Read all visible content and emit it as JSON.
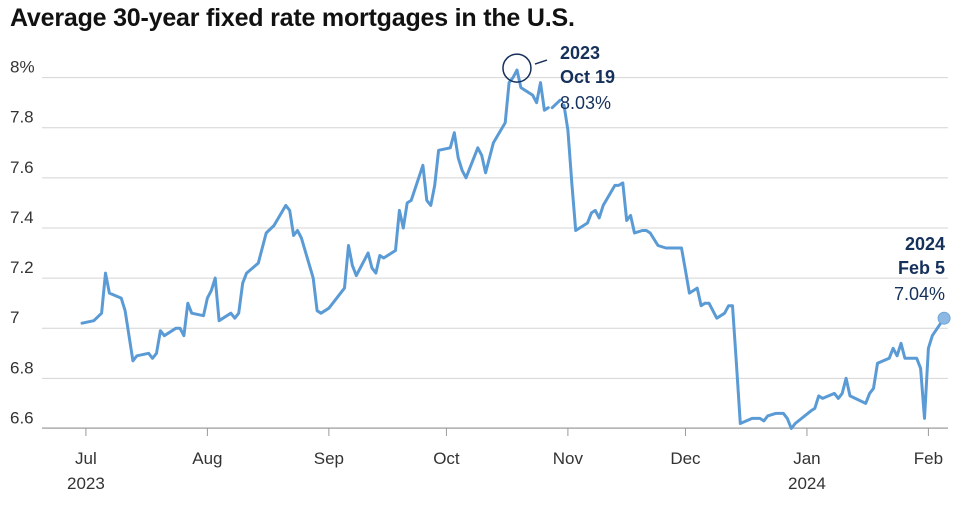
{
  "chart_data": {
    "type": "line",
    "title": "Average 30-year fixed rate mortgages in the U.S.",
    "xlabel": "",
    "ylabel": "",
    "ylim": [
      6.55,
      8.15
    ],
    "x_range": [
      "2023-06-30",
      "2024-02-06"
    ],
    "y_ticks": [
      {
        "value": 6.6,
        "label": "6.6"
      },
      {
        "value": 6.8,
        "label": "6.8"
      },
      {
        "value": 7.0,
        "label": "7"
      },
      {
        "value": 7.2,
        "label": "7.2"
      },
      {
        "value": 7.4,
        "label": "7.4"
      },
      {
        "value": 7.6,
        "label": "7.6"
      },
      {
        "value": 7.8,
        "label": "7.8"
      },
      {
        "value": 8.0,
        "label": "8%"
      }
    ],
    "x_ticks": [
      {
        "date": "2023-07-01",
        "label": "Jul",
        "sublabel": "2023"
      },
      {
        "date": "2023-08-01",
        "label": "Aug",
        "sublabel": ""
      },
      {
        "date": "2023-09-01",
        "label": "Sep",
        "sublabel": ""
      },
      {
        "date": "2023-10-01",
        "label": "Oct",
        "sublabel": ""
      },
      {
        "date": "2023-11-01",
        "label": "Nov",
        "sublabel": ""
      },
      {
        "date": "2023-12-01",
        "label": "Dec",
        "sublabel": ""
      },
      {
        "date": "2024-01-01",
        "label": "Jan",
        "sublabel": "2024"
      },
      {
        "date": "2024-02-01",
        "label": "Feb",
        "sublabel": ""
      }
    ],
    "grid": true,
    "line_color": "#5b9bd5",
    "annotation_color": "#15305a",
    "annotations": [
      {
        "date": "2023-10-19",
        "value": 8.03,
        "year": "2023",
        "day": "Oct 19",
        "value_label": "8.03%",
        "marker": "circle"
      },
      {
        "date": "2024-02-05",
        "value": 7.04,
        "year": "2024",
        "day": "Feb 5",
        "value_label": "7.04%",
        "marker": "dot"
      }
    ],
    "series": [
      {
        "segments": [
          [
            [
              "2023-06-30",
              7.02
            ],
            [
              "2023-07-03",
              7.03
            ],
            [
              "2023-07-05",
              7.06
            ],
            [
              "2023-07-06",
              7.22
            ],
            [
              "2023-07-07",
              7.14
            ],
            [
              "2023-07-10",
              7.12
            ],
            [
              "2023-07-11",
              7.07
            ],
            [
              "2023-07-12",
              6.97
            ],
            [
              "2023-07-13",
              6.87
            ],
            [
              "2023-07-14",
              6.89
            ],
            [
              "2023-07-17",
              6.9
            ],
            [
              "2023-07-18",
              6.88
            ],
            [
              "2023-07-19",
              6.9
            ],
            [
              "2023-07-20",
              6.99
            ],
            [
              "2023-07-21",
              6.97
            ],
            [
              "2023-07-24",
              7.0
            ],
            [
              "2023-07-25",
              7.0
            ],
            [
              "2023-07-26",
              6.97
            ],
            [
              "2023-07-27",
              7.1
            ],
            [
              "2023-07-28",
              7.06
            ],
            [
              "2023-07-31",
              7.05
            ],
            [
              "2023-08-01",
              7.12
            ],
            [
              "2023-08-02",
              7.15
            ],
            [
              "2023-08-03",
              7.2
            ],
            [
              "2023-08-04",
              7.03
            ],
            [
              "2023-08-07",
              7.06
            ],
            [
              "2023-08-08",
              7.04
            ],
            [
              "2023-08-09",
              7.06
            ],
            [
              "2023-08-10",
              7.18
            ],
            [
              "2023-08-11",
              7.22
            ],
            [
              "2023-08-14",
              7.26
            ],
            [
              "2023-08-16",
              7.38
            ],
            [
              "2023-08-18",
              7.41
            ],
            [
              "2023-08-21",
              7.49
            ],
            [
              "2023-08-22",
              7.47
            ],
            [
              "2023-08-23",
              7.37
            ],
            [
              "2023-08-24",
              7.39
            ],
            [
              "2023-08-25",
              7.36
            ],
            [
              "2023-08-28",
              7.2
            ],
            [
              "2023-08-29",
              7.07
            ],
            [
              "2023-08-30",
              7.06
            ],
            [
              "2023-09-01",
              7.08
            ],
            [
              "2023-09-05",
              7.16
            ],
            [
              "2023-09-06",
              7.33
            ],
            [
              "2023-09-07",
              7.25
            ],
            [
              "2023-09-08",
              7.21
            ],
            [
              "2023-09-11",
              7.3
            ],
            [
              "2023-09-12",
              7.24
            ],
            [
              "2023-09-13",
              7.22
            ],
            [
              "2023-09-14",
              7.29
            ],
            [
              "2023-09-15",
              7.28
            ],
            [
              "2023-09-18",
              7.31
            ],
            [
              "2023-09-19",
              7.47
            ],
            [
              "2023-09-20",
              7.4
            ],
            [
              "2023-09-21",
              7.5
            ],
            [
              "2023-09-22",
              7.51
            ],
            [
              "2023-09-25",
              7.65
            ],
            [
              "2023-09-26",
              7.51
            ],
            [
              "2023-09-27",
              7.49
            ],
            [
              "2023-09-28",
              7.57
            ],
            [
              "2023-09-29",
              7.71
            ],
            [
              "2023-10-02",
              7.72
            ],
            [
              "2023-10-03",
              7.78
            ],
            [
              "2023-10-04",
              7.68
            ],
            [
              "2023-10-05",
              7.63
            ],
            [
              "2023-10-06",
              7.6
            ],
            [
              "2023-10-09",
              7.72
            ],
            [
              "2023-10-10",
              7.69
            ],
            [
              "2023-10-11",
              7.62
            ],
            [
              "2023-10-12",
              7.68
            ],
            [
              "2023-10-13",
              7.74
            ],
            [
              "2023-10-16",
              7.82
            ],
            [
              "2023-10-17",
              7.98
            ],
            [
              "2023-10-18",
              8.0
            ],
            [
              "2023-10-19",
              8.03
            ],
            [
              "2023-10-20",
              7.96
            ],
            [
              "2023-10-23",
              7.93
            ],
            [
              "2023-10-24",
              7.9
            ],
            [
              "2023-10-25",
              7.98
            ],
            [
              "2023-10-26",
              7.87
            ],
            [
              "2023-10-27",
              7.88
            ]
          ],
          [
            [
              "2023-10-28",
              7.88
            ],
            [
              "2023-10-30",
              7.91
            ]
          ],
          [
            [
              "2023-10-31",
              7.89
            ],
            [
              "2023-11-01",
              7.79
            ],
            [
              "2023-11-02",
              7.58
            ],
            [
              "2023-11-03",
              7.39
            ],
            [
              "2023-11-06",
              7.42
            ],
            [
              "2023-11-07",
              7.46
            ],
            [
              "2023-11-08",
              7.47
            ],
            [
              "2023-11-09",
              7.44
            ],
            [
              "2023-11-10",
              7.49
            ],
            [
              "2023-11-13",
              7.57
            ],
            [
              "2023-11-14",
              7.57
            ],
            [
              "2023-11-15",
              7.58
            ],
            [
              "2023-11-16",
              7.43
            ],
            [
              "2023-11-17",
              7.45
            ],
            [
              "2023-11-18",
              7.38
            ],
            [
              "2023-11-20",
              7.39
            ],
            [
              "2023-11-21",
              7.39
            ],
            [
              "2023-11-22",
              7.38
            ],
            [
              "2023-11-24",
              7.33
            ],
            [
              "2023-11-26",
              7.32
            ],
            [
              "2023-11-28",
              7.32
            ],
            [
              "2023-11-30",
              7.32
            ],
            [
              "2023-12-01",
              7.23
            ],
            [
              "2023-12-02",
              7.14
            ],
            [
              "2023-12-04",
              7.16
            ],
            [
              "2023-12-05",
              7.09
            ],
            [
              "2023-12-06",
              7.1
            ],
            [
              "2023-12-07",
              7.1
            ],
            [
              "2023-12-08",
              7.07
            ],
            [
              "2023-12-09",
              7.04
            ],
            [
              "2023-12-11",
              7.06
            ],
            [
              "2023-12-12",
              7.09
            ],
            [
              "2023-12-13",
              7.09
            ],
            [
              "2023-12-14",
              6.86
            ],
            [
              "2023-12-15",
              6.62
            ],
            [
              "2023-12-18",
              6.64
            ],
            [
              "2023-12-20",
              6.64
            ],
            [
              "2023-12-21",
              6.63
            ],
            [
              "2023-12-22",
              6.65
            ],
            [
              "2023-12-24",
              6.66
            ],
            [
              "2023-12-26",
              6.66
            ],
            [
              "2023-12-27",
              6.64
            ],
            [
              "2023-12-28",
              6.6
            ],
            [
              "2023-12-29",
              6.62
            ],
            [
              "2024-01-02",
              6.67
            ],
            [
              "2024-01-03",
              6.68
            ],
            [
              "2024-01-04",
              6.73
            ],
            [
              "2024-01-05",
              6.72
            ],
            [
              "2024-01-08",
              6.74
            ],
            [
              "2024-01-09",
              6.72
            ],
            [
              "2024-01-10",
              6.74
            ],
            [
              "2024-01-11",
              6.8
            ],
            [
              "2024-01-12",
              6.73
            ],
            [
              "2024-01-16",
              6.7
            ],
            [
              "2024-01-17",
              6.74
            ],
            [
              "2024-01-18",
              6.76
            ],
            [
              "2024-01-19",
              6.86
            ],
            [
              "2024-01-22",
              6.88
            ],
            [
              "2024-01-23",
              6.92
            ],
            [
              "2024-01-24",
              6.89
            ],
            [
              "2024-01-25",
              6.94
            ],
            [
              "2024-01-26",
              6.88
            ],
            [
              "2024-01-29",
              6.88
            ],
            [
              "2024-01-30",
              6.84
            ],
            [
              "2024-01-31",
              6.64
            ],
            [
              "2024-02-01",
              6.92
            ],
            [
              "2024-02-02",
              6.97
            ],
            [
              "2024-02-05",
              7.04
            ]
          ]
        ]
      }
    ]
  }
}
